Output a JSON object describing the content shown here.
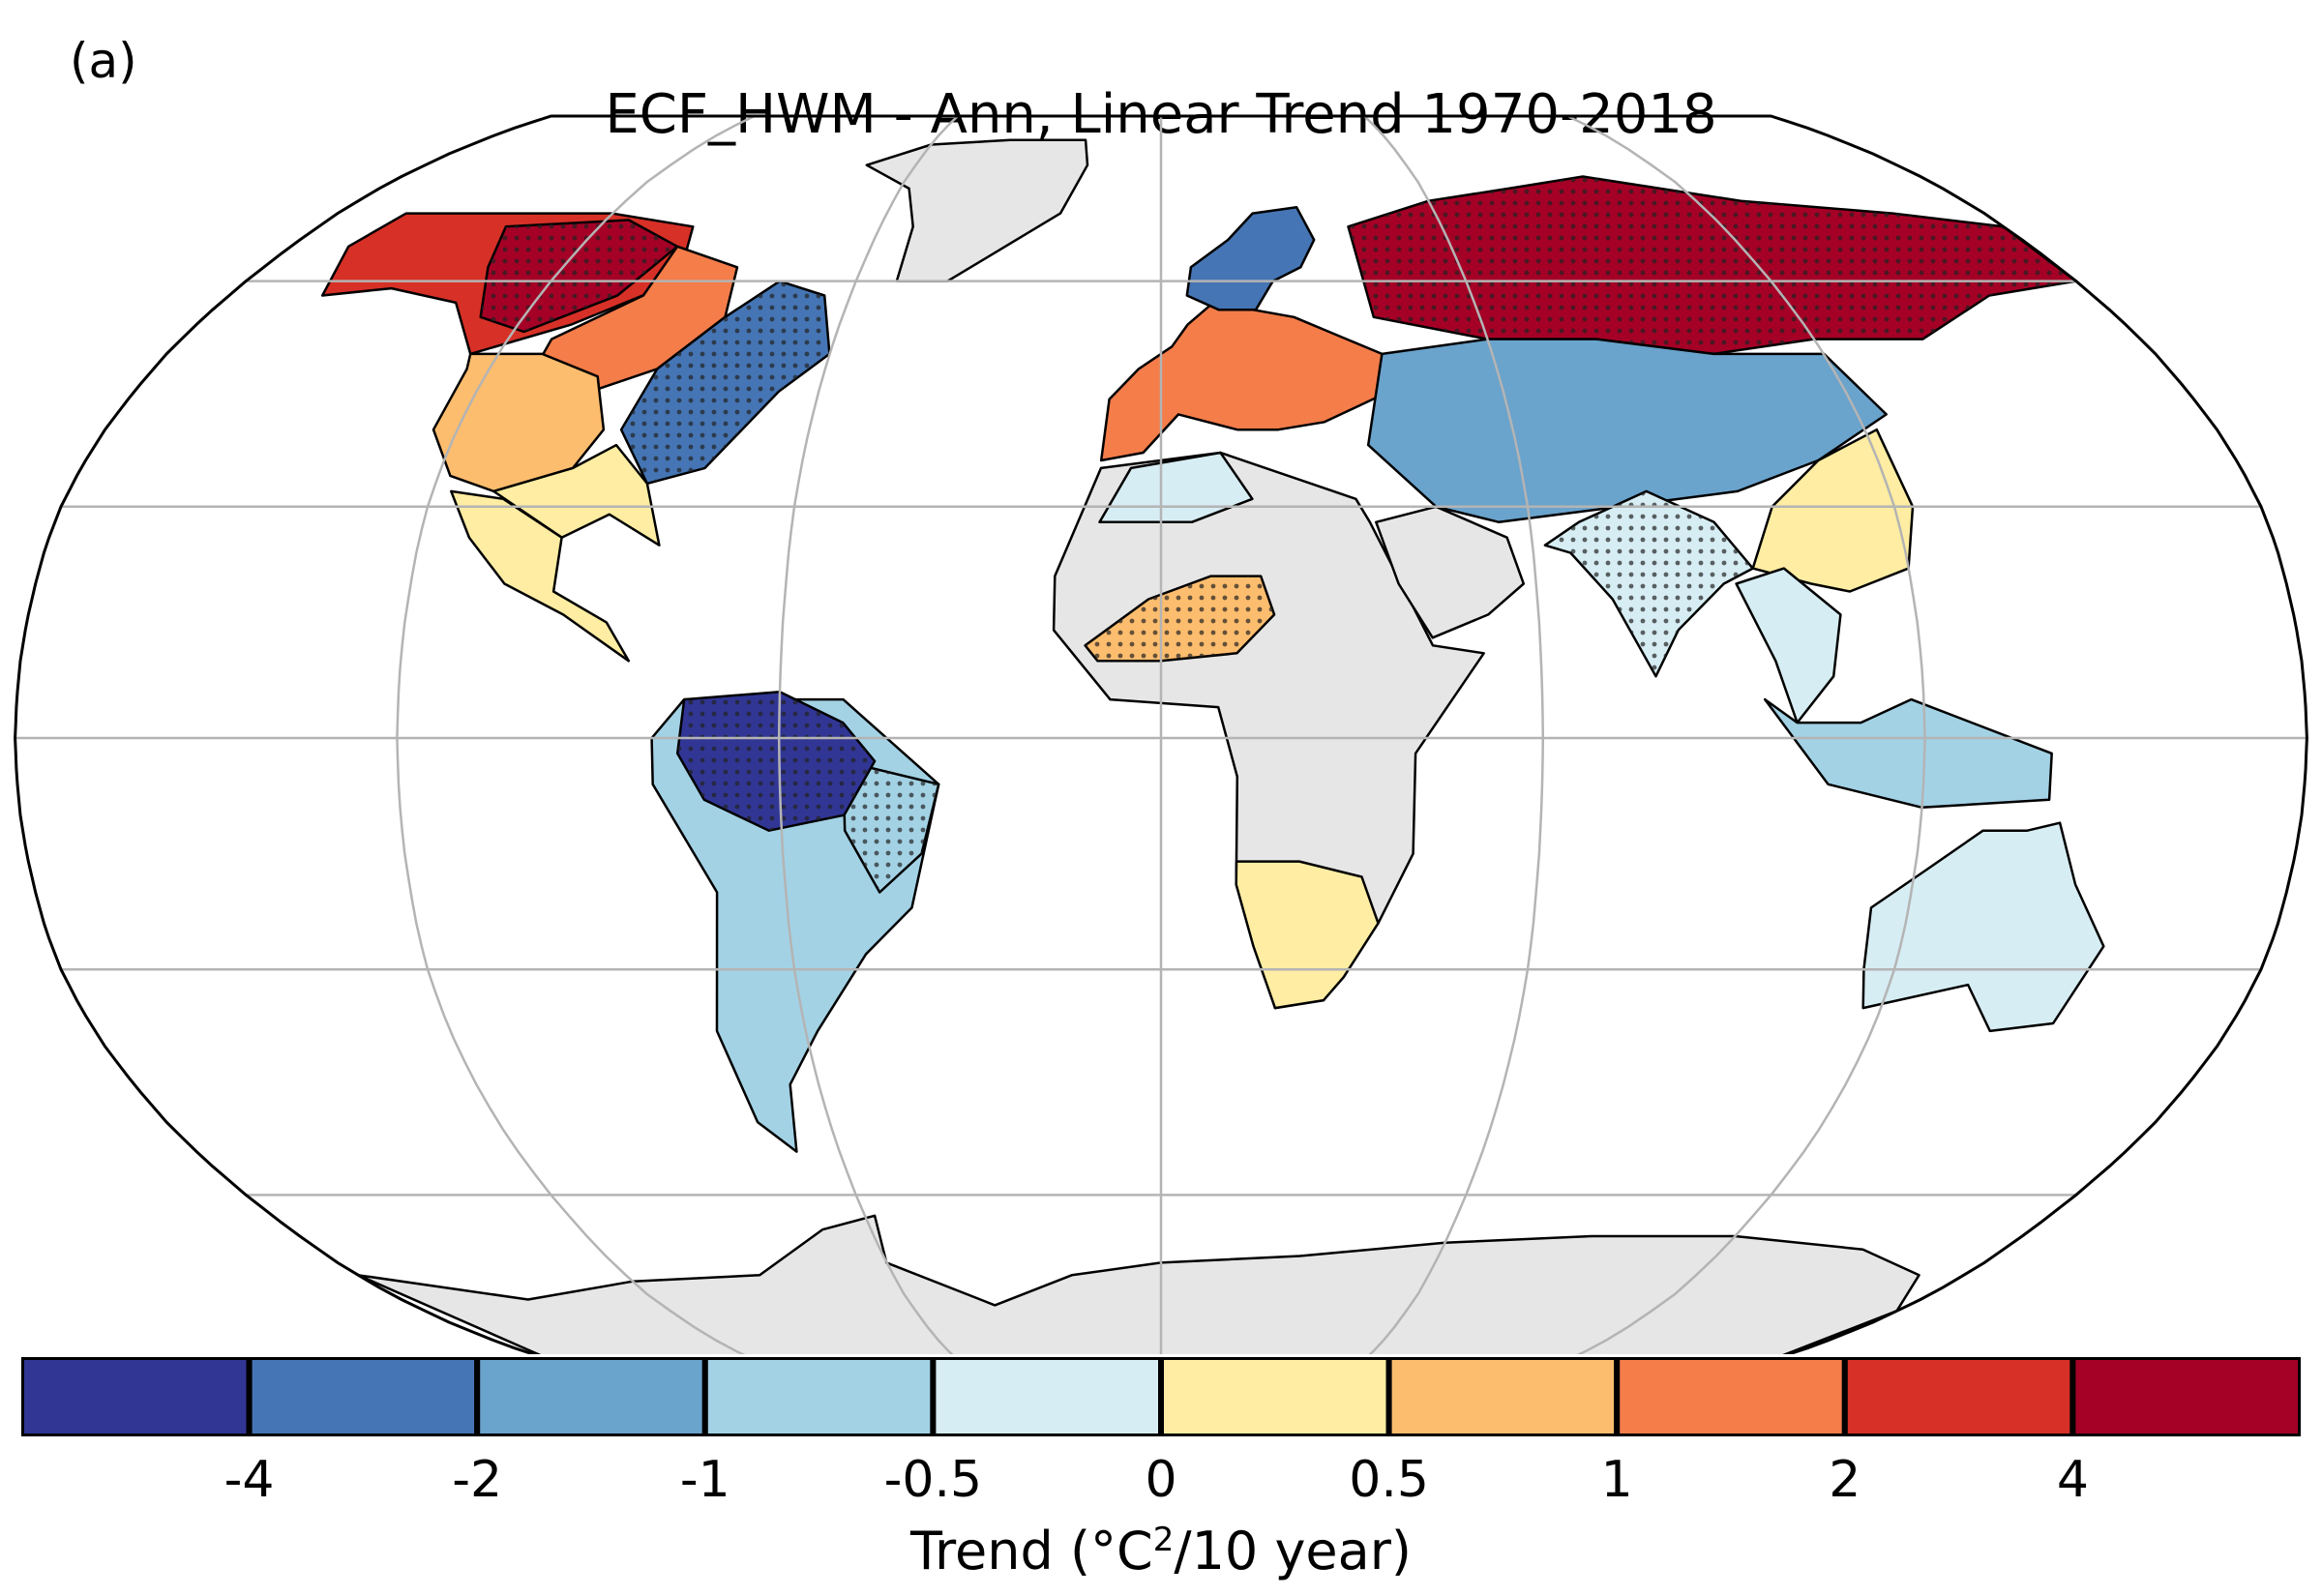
{
  "panel_label": "(a)",
  "title": "ECF_HWM - Ann, Linear Trend 1970-2018",
  "colorbar": {
    "label_prefix": "Trend (",
    "label_unit_base": "°C",
    "label_unit_sup": "2",
    "label_suffix": "/10 year)",
    "ticks": [
      "-4",
      "-2",
      "-1",
      "-0.5",
      "0",
      "0.5",
      "1",
      "2",
      "4"
    ],
    "bins": [
      {
        "range": "< -4",
        "color": "#313695"
      },
      {
        "range": "-4 to -2",
        "color": "#4575b4"
      },
      {
        "range": "-2 to -1",
        "color": "#6aa3cc"
      },
      {
        "range": "-1 to -0.5",
        "color": "#a3d2e5"
      },
      {
        "range": "-0.5 to 0",
        "color": "#d6edf3"
      },
      {
        "range": "0 to 0.5",
        "color": "#feeda2"
      },
      {
        "range": "0.5 to 1",
        "color": "#fdbd6e"
      },
      {
        "range": "1 to 2",
        "color": "#f47d4a"
      },
      {
        "range": "2 to 4",
        "color": "#d73027"
      },
      {
        "range": "> 4",
        "color": "#a50026"
      }
    ]
  },
  "colors": {
    "no_data_land": "#e6e6e6",
    "gridline": "#b4b4b4",
    "coastline": "#000000",
    "stipple": "#222222"
  },
  "map": {
    "projection": "robinson",
    "significance_stippling": true,
    "regions": [
      {
        "name": "alaska-western-canada",
        "trend_bin": "2 to 4"
      },
      {
        "name": "western-canada-core",
        "trend_bin": "> 4"
      },
      {
        "name": "central-canada",
        "trend_bin": "1 to 2"
      },
      {
        "name": "eastern-us-canada",
        "trend_bin": "-4 to -2"
      },
      {
        "name": "western-us",
        "trend_bin": "0.5 to 1"
      },
      {
        "name": "southern-us",
        "trend_bin": "0 to 0.5"
      },
      {
        "name": "mexico",
        "trend_bin": "0 to 0.5"
      },
      {
        "name": "amazon",
        "trend_bin": "< -4"
      },
      {
        "name": "south-america-south",
        "trend_bin": "-1 to -0.5"
      },
      {
        "name": "scandinavia",
        "trend_bin": "-4 to -2"
      },
      {
        "name": "western-europe",
        "trend_bin": "1 to 2"
      },
      {
        "name": "siberia",
        "trend_bin": "> 4"
      },
      {
        "name": "central-asia",
        "trend_bin": "-2 to -1"
      },
      {
        "name": "india",
        "trend_bin": "-0.5 to 0"
      },
      {
        "name": "china",
        "trend_bin": "0 to 0.5"
      },
      {
        "name": "sahel",
        "trend_bin": "0.5 to 1"
      },
      {
        "name": "southern-africa",
        "trend_bin": "0 to 0.5"
      },
      {
        "name": "australia",
        "trend_bin": "-0.5 to 0"
      },
      {
        "name": "greenland",
        "trend_bin": "no data"
      },
      {
        "name": "africa",
        "trend_bin": "no data"
      },
      {
        "name": "antarctica",
        "trend_bin": "no data"
      }
    ]
  }
}
